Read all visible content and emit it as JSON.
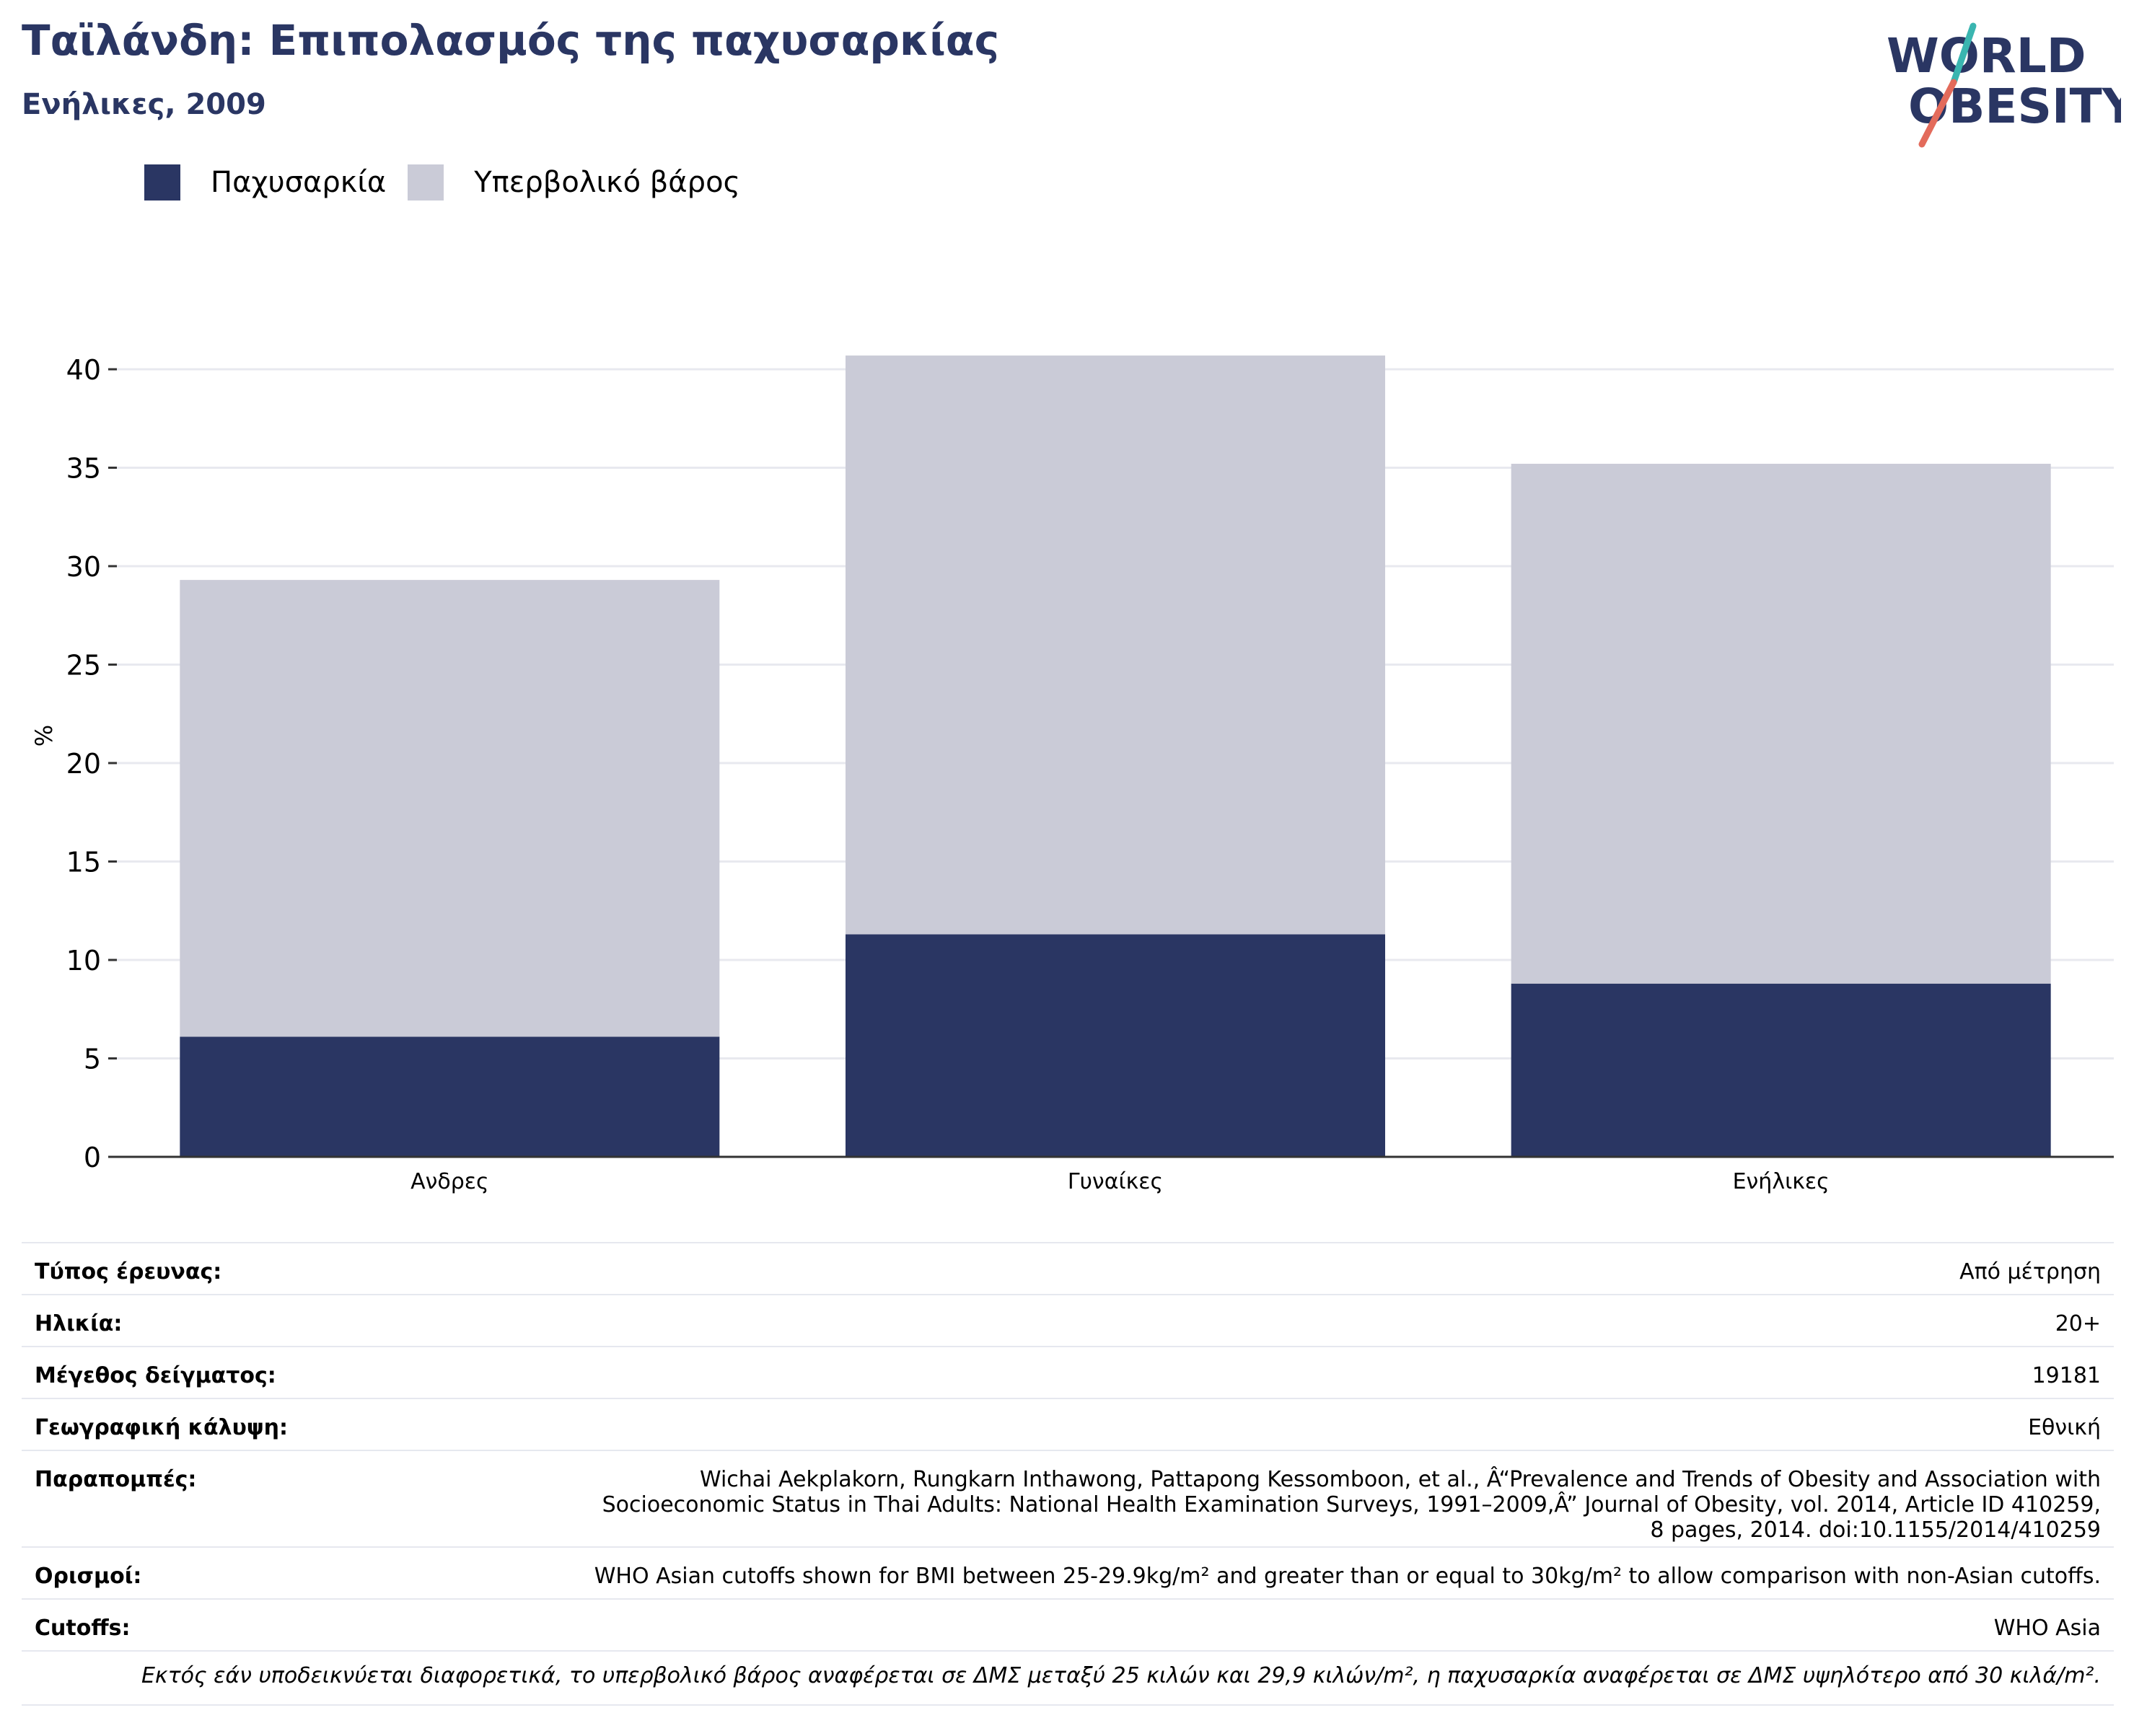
{
  "header": {
    "title": "Ταϊλάνδη: Επιπολασμός της παχυσαρκίας",
    "subtitle": "Ενήλικες, 2009",
    "logo_line1": "WORLD",
    "logo_line2": "OBESITY"
  },
  "colors": {
    "obesity": "#2a3663",
    "overweight": "#cacbd7",
    "title": "#2a3663",
    "logo_teal": "#3ab5b0",
    "logo_coral": "#e36b5b"
  },
  "chart_data": {
    "type": "bar",
    "stacked": true,
    "categories": [
      "Ανδρες",
      "Γυναίκες",
      "Ενήλικες"
    ],
    "series": [
      {
        "name": "Παχυσαρκία",
        "values": [
          6.1,
          11.3,
          8.8
        ]
      },
      {
        "name": "Υπερβολικό βάρος",
        "values": [
          23.2,
          29.4,
          26.4
        ]
      }
    ],
    "ylabel": "%",
    "ylim": [
      0,
      42
    ],
    "yticks": [
      0,
      5,
      10,
      15,
      20,
      25,
      30,
      35,
      40
    ],
    "grid": true,
    "legend_position": "top-left"
  },
  "info": {
    "rows": [
      {
        "label": "Τύπος έρευνας:",
        "value": "Από μέτρηση"
      },
      {
        "label": "Ηλικία:",
        "value": "20+"
      },
      {
        "label": "Μέγεθος δείγματος:",
        "value": "19181"
      },
      {
        "label": "Γεωγραφική κάλυψη:",
        "value": "Εθνική"
      },
      {
        "label": "Παραπομπές:",
        "value": "Wichai Aekplakorn, Rungkarn Inthawong, Pattapong Kessomboon, et al., Â“Prevalence and Trends of Obesity and Association with Socioeconomic Status in Thai Adults: National Health Examination Surveys, 1991–2009,Â” Journal of Obesity, vol. 2014, Article ID 410259, 8 pages, 2014. doi:10.1155/2014/410259"
      },
      {
        "label": "Ορισμοί:",
        "value": "WHO Asian cutoffs shown for BMI between 25-29.9kg/m²  and greater than or equal to 30kg/m² to allow comparison with non-Asian cutoffs."
      },
      {
        "label": "Cutoffs:",
        "value": "WHO Asia"
      }
    ],
    "footnote": "Εκτός εάν υποδεικνύεται διαφορετικά, το υπερβολικό βάρος αναφέρεται σε ΔΜΣ μεταξύ 25 κιλών και 29,9 κιλών/m², η παχυσαρκία αναφέρεται σε ΔΜΣ υψηλότερο από 30 κιλά/m²."
  }
}
